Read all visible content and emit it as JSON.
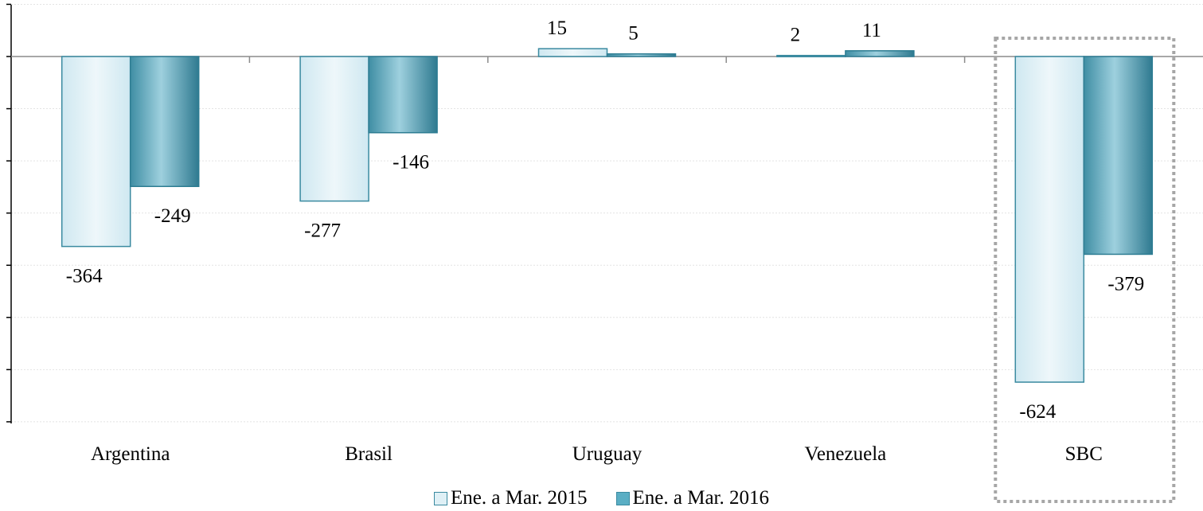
{
  "chart_data": {
    "type": "bar",
    "categories": [
      "Argentina",
      "Brasil",
      "Uruguay",
      "Venezuela",
      "SBC"
    ],
    "series": [
      {
        "name": "Ene. a Mar. 2015",
        "values": [
          -364,
          -277,
          15,
          2,
          -624
        ]
      },
      {
        "name": "Ene. a Mar. 2016",
        "values": [
          -249,
          -146,
          5,
          11,
          -379
        ]
      }
    ],
    "ylim": [
      -700,
      100
    ],
    "grid": true,
    "legend_position": "bottom-center",
    "highlighted_category": "SBC",
    "colors": {
      "series_1": "#dff0f6",
      "series_2": "#5aaec4",
      "border": "#2e7d93",
      "highlight_box": "#a6a6a6"
    }
  },
  "legend": {
    "item_1": "Ene. a Mar. 2015",
    "item_2": "Ene. a Mar. 2016"
  }
}
